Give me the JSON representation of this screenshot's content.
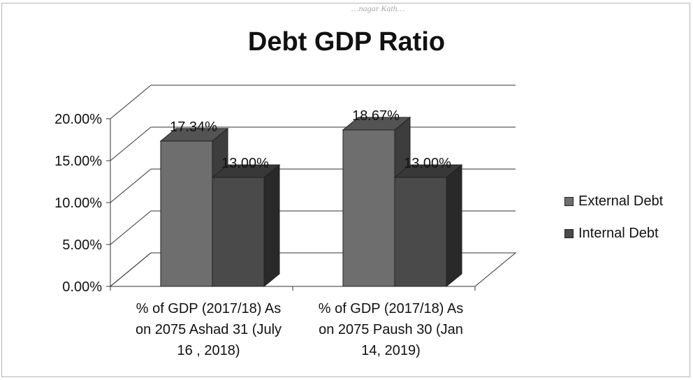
{
  "watermark": "…nagar Kath…",
  "chart_data": {
    "type": "bar",
    "title": "Debt GDP Ratio",
    "categories": [
      "% of GDP (2017/18) As on 2075 Ashad 31 (July 16 , 2018)",
      "% of GDP (2017/18) As on 2075 Paush 30 (Jan 14, 2019)"
    ],
    "category_label_lines": [
      [
        "% of GDP (2017/18) As",
        "on 2075 Ashad 31 (July",
        "16 , 2018)"
      ],
      [
        "% of GDP (2017/18) As",
        "on 2075 Paush 30 (Jan",
        "14, 2019)"
      ]
    ],
    "series": [
      {
        "name": "External Debt",
        "values": [
          17.34,
          18.67
        ],
        "labels": [
          "17.34%",
          "18.67%"
        ],
        "color": "#6e6e6e"
      },
      {
        "name": "Internal Debt",
        "values": [
          13.0,
          13.0
        ],
        "labels": [
          "13.00%",
          "13.00%"
        ],
        "color": "#4a4a4a"
      }
    ],
    "y_ticks": [
      "0.00%",
      "5.00%",
      "10.00%",
      "15.00%",
      "20.00%"
    ],
    "ylim": [
      0,
      20
    ],
    "xlabel": "",
    "ylabel": "",
    "grid": true,
    "legend_position": "right",
    "style": "3d-clustered-column"
  }
}
